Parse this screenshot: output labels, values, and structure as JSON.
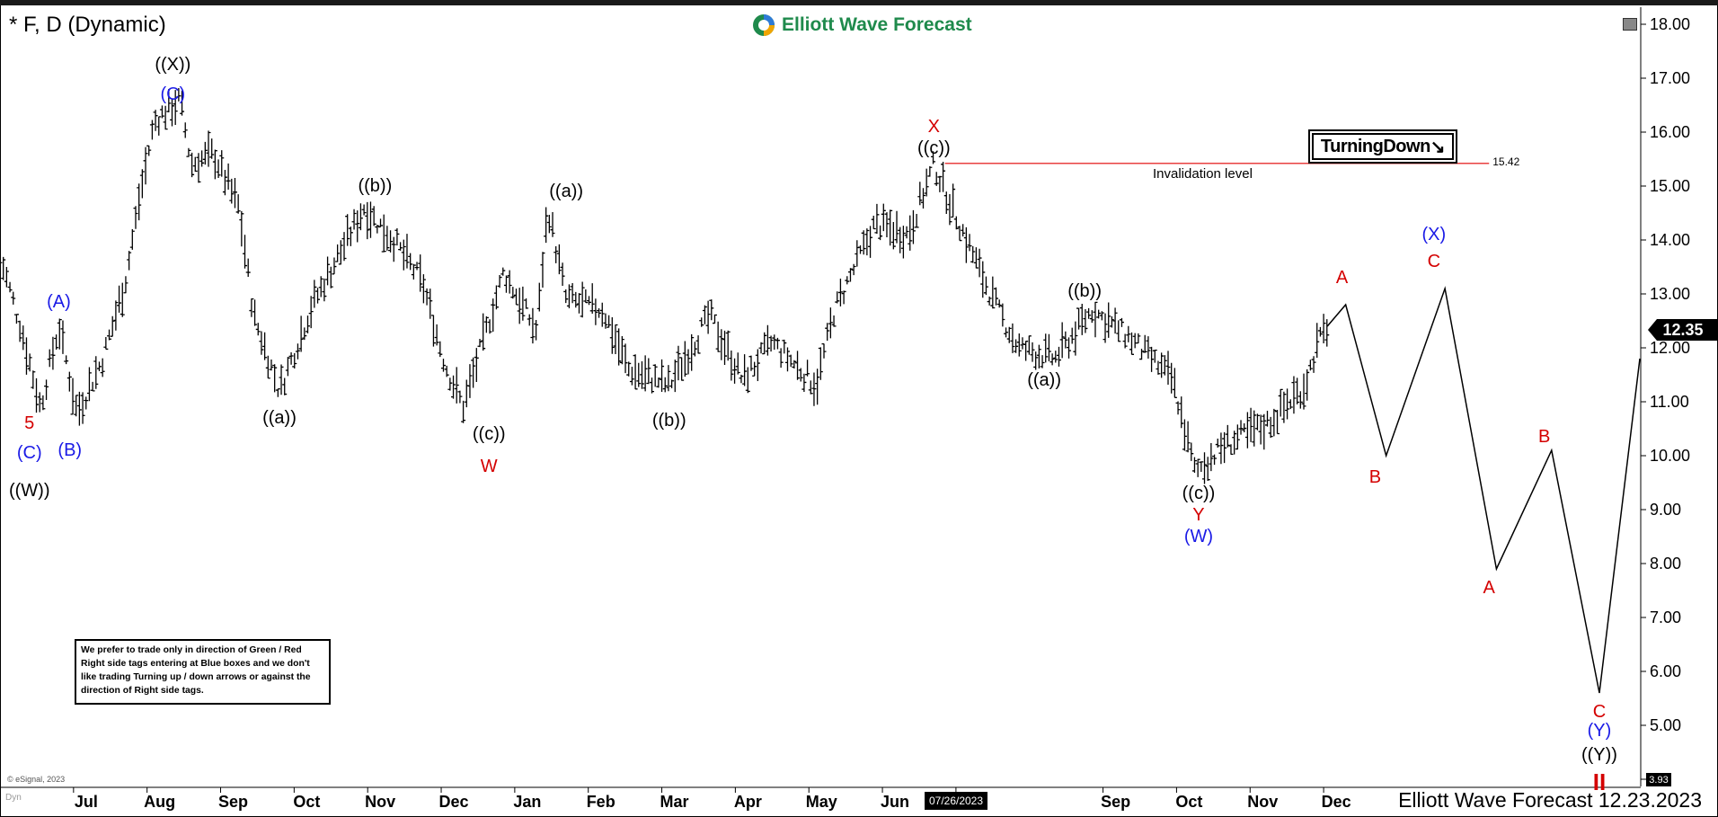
{
  "header": {
    "symbol": "* F, D (Dynamic)",
    "brand": "Elliott Wave Forecast",
    "footer": "Elliott Wave Forecast 12.23.2023"
  },
  "note": "We prefer to trade only in direction of Green / Red Right side tags entering at Blue boxes and we don't like trading Turning up / down arrows or against the direction of Right side tags.",
  "turning_tag": "TurningDown",
  "tags": {
    "last_price": "12.35",
    "low_price": "3.93",
    "cursor_date": "07/26/2023",
    "copyright": "© eSignal, 2023",
    "dyn": "Dyn"
  },
  "colors": {
    "red": "#d40000",
    "blue": "#1a1ae6",
    "black": "#000000",
    "brand_green": "#1f8a4c"
  },
  "chart_data": {
    "type": "ohlc",
    "y_axis": {
      "min": 4.0,
      "max": 18.0,
      "position": "right",
      "ticks": [
        "18.00",
        "17.00",
        "16.00",
        "15.00",
        "14.00",
        "13.00",
        "12.00",
        "11.00",
        "10.00",
        "9.00",
        "8.00",
        "7.00",
        "6.00",
        "5.00",
        "4.00"
      ]
    },
    "x_axis": {
      "labels": [
        "Jul",
        "Aug",
        "Sep",
        "Oct",
        "Nov",
        "Dec",
        "Jan",
        "Feb",
        "Mar",
        "Apr",
        "May",
        "Jun",
        "Jul",
        "Sep",
        "Oct",
        "Nov",
        "Dec"
      ],
      "label_months": [
        1,
        2,
        3,
        4,
        5,
        6,
        7,
        8,
        9,
        10,
        11,
        12,
        13,
        15,
        16,
        17,
        18
      ],
      "domain": [
        0,
        22.3
      ]
    },
    "price_path": [
      [
        0.0,
        13.7
      ],
      [
        0.3,
        12.3
      ],
      [
        0.55,
        10.9
      ],
      [
        0.8,
        12.4
      ],
      [
        1.05,
        10.8
      ],
      [
        1.4,
        11.8
      ],
      [
        1.7,
        13.2
      ],
      [
        1.9,
        14.8
      ],
      [
        2.1,
        16.2
      ],
      [
        2.45,
        16.6
      ],
      [
        2.6,
        15.4
      ],
      [
        2.9,
        15.6
      ],
      [
        3.25,
        14.6
      ],
      [
        3.45,
        12.6
      ],
      [
        3.8,
        11.2
      ],
      [
        4.25,
        12.8
      ],
      [
        4.95,
        14.6
      ],
      [
        5.35,
        14.0
      ],
      [
        5.75,
        13.2
      ],
      [
        6.05,
        11.7
      ],
      [
        6.3,
        10.9
      ],
      [
        6.85,
        13.4
      ],
      [
        7.3,
        12.3
      ],
      [
        7.45,
        14.6
      ],
      [
        7.7,
        12.9
      ],
      [
        8.2,
        12.7
      ],
      [
        8.55,
        11.6
      ],
      [
        9.1,
        11.3
      ],
      [
        9.65,
        12.6
      ],
      [
        10.1,
        11.4
      ],
      [
        10.5,
        12.1
      ],
      [
        11.1,
        11.3
      ],
      [
        11.35,
        12.7
      ],
      [
        11.9,
        14.3
      ],
      [
        12.35,
        14.1
      ],
      [
        12.7,
        15.4
      ],
      [
        12.95,
        14.6
      ],
      [
        13.5,
        12.9
      ],
      [
        13.85,
        12.0
      ],
      [
        14.35,
        11.8
      ],
      [
        14.85,
        12.7
      ],
      [
        15.35,
        12.2
      ],
      [
        15.95,
        11.4
      ],
      [
        16.25,
        9.7
      ],
      [
        16.65,
        10.2
      ],
      [
        17.25,
        10.6
      ],
      [
        17.75,
        11.3
      ],
      [
        17.9,
        12.0
      ],
      [
        18.05,
        12.4
      ]
    ],
    "projection": [
      [
        18.05,
        12.4
      ],
      [
        18.3,
        12.8
      ],
      [
        18.85,
        10.0
      ],
      [
        19.65,
        13.1
      ],
      [
        20.35,
        7.9
      ],
      [
        21.1,
        10.1
      ],
      [
        21.75,
        5.6
      ],
      [
        22.3,
        11.8
      ]
    ],
    "invalidation": {
      "value": 15.42,
      "label": "Invalidation level",
      "x_start": 12.85,
      "x_end": 20.25
    },
    "wave_labels": [
      {
        "text": "5",
        "x": 0.4,
        "y": 10.5,
        "color": "red"
      },
      {
        "text": "(C)",
        "x": 0.4,
        "y": 9.95,
        "color": "blue"
      },
      {
        "text": "((W))",
        "x": 0.4,
        "y": 9.25,
        "color": "black"
      },
      {
        "text": "(A)",
        "x": 0.8,
        "y": 12.75,
        "color": "blue"
      },
      {
        "text": "(B)",
        "x": 0.95,
        "y": 10.0,
        "color": "blue"
      },
      {
        "text": "((X))",
        "x": 2.35,
        "y": 17.15,
        "color": "black"
      },
      {
        "text": "(C)",
        "x": 2.35,
        "y": 16.6,
        "color": "blue"
      },
      {
        "text": "((a))",
        "x": 3.8,
        "y": 10.6,
        "color": "black"
      },
      {
        "text": "((b))",
        "x": 5.1,
        "y": 14.9,
        "color": "black"
      },
      {
        "text": "((c))",
        "x": 6.65,
        "y": 10.3,
        "color": "black"
      },
      {
        "text": "W",
        "x": 6.65,
        "y": 9.7,
        "color": "red"
      },
      {
        "text": "((a))",
        "x": 7.7,
        "y": 14.8,
        "color": "black"
      },
      {
        "text": "((b))",
        "x": 9.1,
        "y": 10.55,
        "color": "black"
      },
      {
        "text": "X",
        "x": 12.7,
        "y": 16.0,
        "color": "red"
      },
      {
        "text": "((c))",
        "x": 12.7,
        "y": 15.6,
        "color": "black"
      },
      {
        "text": "((a))",
        "x": 14.2,
        "y": 11.3,
        "color": "black"
      },
      {
        "text": "((b))",
        "x": 14.75,
        "y": 12.95,
        "color": "black"
      },
      {
        "text": "((c))",
        "x": 16.3,
        "y": 9.2,
        "color": "black"
      },
      {
        "text": "Y",
        "x": 16.3,
        "y": 8.8,
        "color": "red"
      },
      {
        "text": "(W)",
        "x": 16.3,
        "y": 8.4,
        "color": "blue"
      },
      {
        "text": "A",
        "x": 18.25,
        "y": 13.2,
        "color": "red"
      },
      {
        "text": "B",
        "x": 18.7,
        "y": 9.5,
        "color": "red"
      },
      {
        "text": "(X)",
        "x": 19.5,
        "y": 14.0,
        "color": "blue"
      },
      {
        "text": "C",
        "x": 19.5,
        "y": 13.5,
        "color": "red"
      },
      {
        "text": "A",
        "x": 20.25,
        "y": 7.45,
        "color": "red"
      },
      {
        "text": "B",
        "x": 21.0,
        "y": 10.25,
        "color": "red"
      },
      {
        "text": "C",
        "x": 21.75,
        "y": 5.15,
        "color": "red"
      },
      {
        "text": "(Y)",
        "x": 21.75,
        "y": 4.8,
        "color": "blue"
      },
      {
        "text": "((Y))",
        "x": 21.75,
        "y": 4.35,
        "color": "black"
      },
      {
        "text": "II",
        "x": 21.75,
        "y": 3.8,
        "color": "red"
      }
    ]
  }
}
